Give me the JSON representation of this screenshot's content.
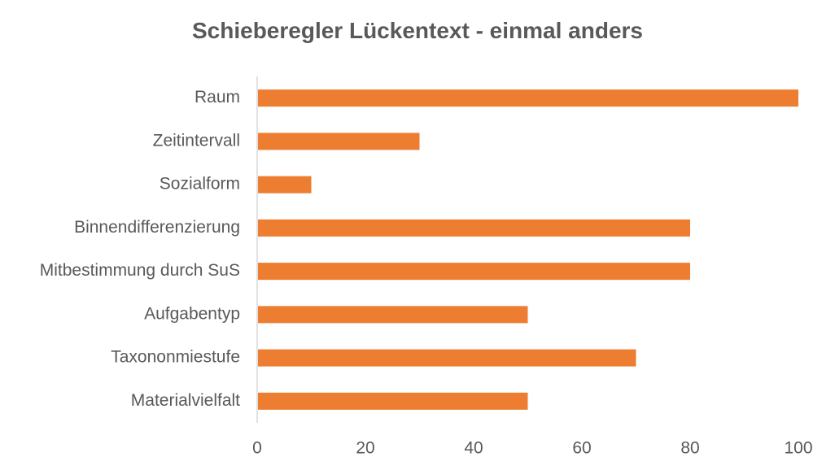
{
  "chart_data": {
    "type": "bar",
    "orientation": "horizontal",
    "title": "Schieberegler Lückentext - einmal anders",
    "categories": [
      "Raum",
      "Zeitintervall",
      "Sozialform",
      "Binnendifferenzierung",
      "Mitbestimmung durch SuS",
      "Aufgabentyp",
      "Taxononmiestufe",
      "Materialvielfalt"
    ],
    "values": [
      100,
      30,
      10,
      80,
      80,
      50,
      70,
      50
    ],
    "xlim": [
      0,
      100
    ],
    "xticks": [
      "0",
      "20",
      "40",
      "60",
      "80",
      "100"
    ],
    "grid": false,
    "legend": "none",
    "bar_color": "#ED7D31",
    "axis_color": "#D9D9D9",
    "text_color": "#595959"
  }
}
